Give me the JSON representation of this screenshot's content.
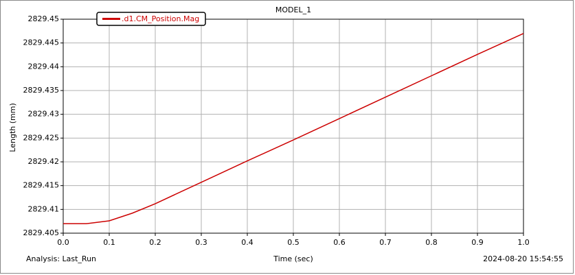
{
  "chart_data": {
    "type": "line",
    "title": "MODEL_1",
    "xlabel": "Time (sec)",
    "ylabel": "Length (mm)",
    "analysis": "Analysis:  Last_Run",
    "timestamp": "2024-08-20 15:54:55",
    "x": [
      0,
      0.05,
      0.1,
      0.15,
      0.2,
      0.3,
      0.4,
      0.5,
      0.6,
      0.7,
      0.8,
      0.9,
      1.0
    ],
    "series": [
      {
        "name": ".d1.CM_Position.Mag",
        "color": "#cc0000",
        "values": [
          2829.407,
          2829.407,
          2829.4076,
          2829.4092,
          2829.4112,
          2829.4157,
          2829.4202,
          2829.4246,
          2829.4291,
          2829.4336,
          2829.4381,
          2829.4426,
          2829.447
        ]
      }
    ],
    "xlim": [
      0,
      1
    ],
    "ylim": [
      2829.405,
      2829.45
    ],
    "xticks": [
      {
        "value": 0,
        "label": "0.0"
      },
      0.1,
      0.2,
      0.3,
      0.4,
      0.5,
      0.6,
      0.7,
      0.8,
      0.9,
      {
        "value": 1,
        "label": "1.0"
      }
    ],
    "yticks": [
      2829.405,
      2829.41,
      2829.415,
      2829.42,
      2829.425,
      2829.43,
      2829.435,
      2829.44,
      2829.445,
      2829.45
    ],
    "grid": true,
    "legend": "top-left"
  }
}
